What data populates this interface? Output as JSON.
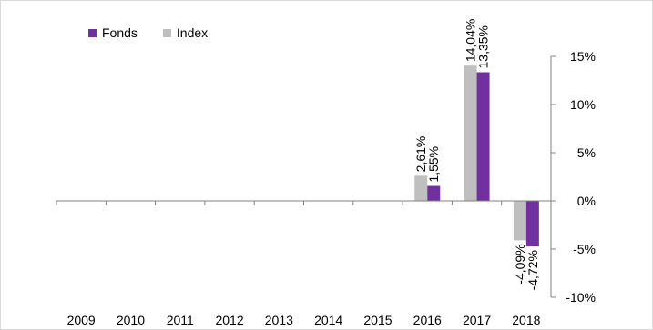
{
  "chart_data": {
    "type": "bar",
    "categories": [
      "2009",
      "2010",
      "2011",
      "2012",
      "2013",
      "2014",
      "2015",
      "2016",
      "2017",
      "2018"
    ],
    "series": [
      {
        "name": "Index",
        "color": "#bfbfbf",
        "values": [
          null,
          null,
          null,
          null,
          null,
          null,
          null,
          2.61,
          14.04,
          -4.09
        ]
      },
      {
        "name": "Fonds",
        "color": "#7030a0",
        "values": [
          null,
          null,
          null,
          null,
          null,
          null,
          null,
          1.55,
          13.35,
          -4.72
        ]
      }
    ],
    "data_labels": {
      "Index": [
        "",
        "",
        "",
        "",
        "",
        "",
        "",
        "2,61%",
        "14,04%",
        "-4,09%"
      ],
      "Fonds": [
        "",
        "",
        "",
        "",
        "",
        "",
        "",
        "1,55%",
        "13,35%",
        "-4,72%"
      ]
    },
    "y_ticks": [
      15,
      10,
      5,
      0,
      -5,
      -10
    ],
    "y_tick_labels": [
      "15%",
      "10%",
      "5%",
      "0%",
      "-5%",
      "-10%"
    ],
    "ylim": [
      -10,
      15
    ],
    "y_axis_side": "right",
    "grid": false,
    "legend": {
      "placement": "top-left",
      "order": [
        "Fonds",
        "Index"
      ]
    },
    "title": "",
    "xlabel": "",
    "ylabel": ""
  }
}
